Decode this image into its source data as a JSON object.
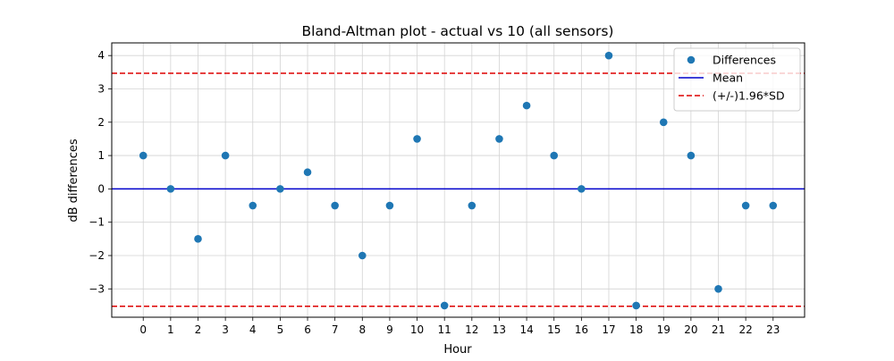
{
  "chart_data": {
    "type": "scatter",
    "title": "Bland-Altman plot - actual vs 10 (all sensors)",
    "xlabel": "Hour",
    "ylabel": "dB differences",
    "xlim": [
      -1.15,
      24.15
    ],
    "ylim": [
      -3.85,
      4.38
    ],
    "grid": true,
    "legend_position": "top-right",
    "x_ticks": [
      "0",
      "1",
      "2",
      "3",
      "4",
      "5",
      "6",
      "7",
      "8",
      "9",
      "10",
      "11",
      "12",
      "13",
      "14",
      "15",
      "16",
      "17",
      "18",
      "19",
      "20",
      "21",
      "22",
      "23"
    ],
    "y_ticks": [
      {
        "value": -3,
        "label": "−3"
      },
      {
        "value": -2,
        "label": "−2"
      },
      {
        "value": -1,
        "label": "−1"
      },
      {
        "value": 0,
        "label": "0"
      },
      {
        "value": 1,
        "label": "1"
      },
      {
        "value": 2,
        "label": "2"
      },
      {
        "value": 3,
        "label": "3"
      },
      {
        "value": 4,
        "label": "4"
      }
    ],
    "series": [
      {
        "name": "Differences",
        "kind": "scatter",
        "color": "#1f77b4",
        "x": [
          0,
          1,
          2,
          3,
          4,
          5,
          6,
          7,
          8,
          9,
          10,
          11,
          12,
          13,
          14,
          15,
          16,
          17,
          18,
          19,
          20,
          21,
          22,
          23
        ],
        "y": [
          1,
          0,
          -1.5,
          1,
          -0.5,
          0,
          0.5,
          -0.5,
          -2,
          -0.5,
          1.5,
          -3.5,
          -0.5,
          1.5,
          2.5,
          1,
          0,
          4,
          -3.5,
          2,
          1,
          -3,
          -0.5,
          -0.5
        ]
      },
      {
        "name": "Mean",
        "kind": "hline",
        "value": 0,
        "color": "#0000cc",
        "style": "solid"
      },
      {
        "name": "(+/-)1.96*SD",
        "kind": "hline",
        "value": 3.47,
        "color": "#dd0000",
        "style": "dashed"
      },
      {
        "name": "(+/-)1.96*SD",
        "kind": "hline",
        "value": -3.52,
        "color": "#dd0000",
        "style": "dashed",
        "legend": false
      }
    ]
  }
}
